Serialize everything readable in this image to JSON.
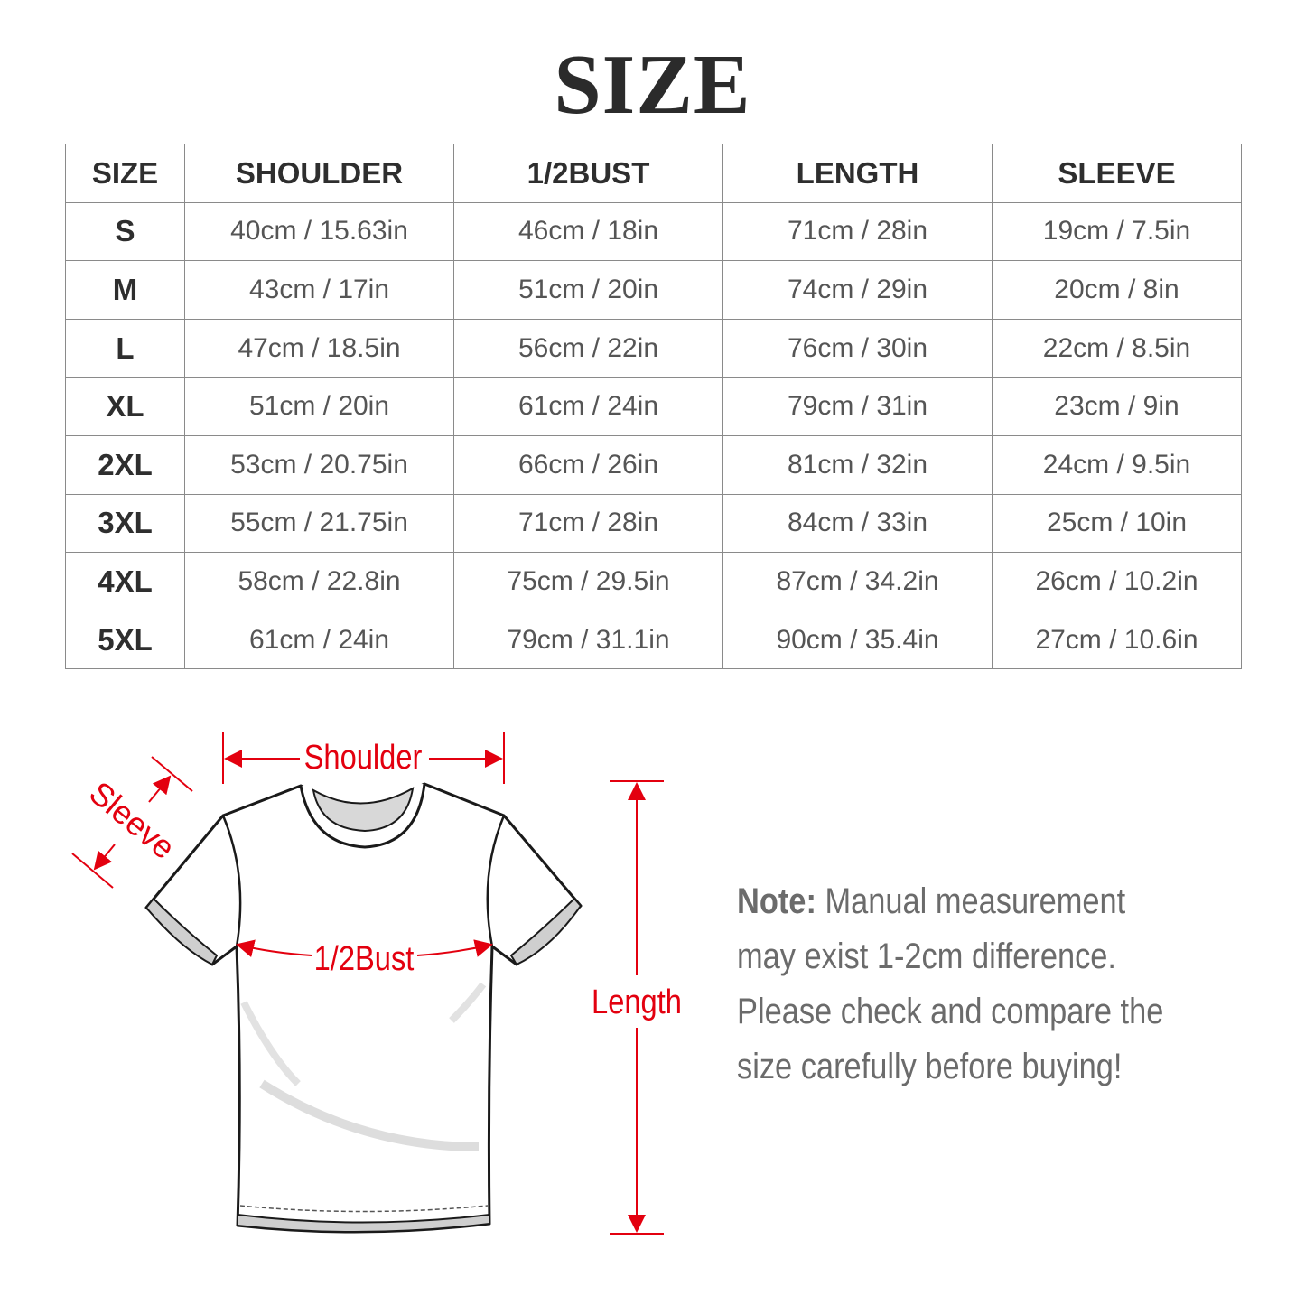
{
  "title": "SIZE",
  "table": {
    "headers": [
      "SIZE",
      "SHOULDER",
      "1/2BUST",
      "LENGTH",
      "SLEEVE"
    ],
    "rows": [
      [
        "S",
        "40cm / 15.63in",
        "46cm / 18in",
        "71cm / 28in",
        "19cm / 7.5in"
      ],
      [
        "M",
        "43cm / 17in",
        "51cm / 20in",
        "74cm / 29in",
        "20cm / 8in"
      ],
      [
        "L",
        "47cm / 18.5in",
        "56cm / 22in",
        "76cm / 30in",
        "22cm / 8.5in"
      ],
      [
        "XL",
        "51cm / 20in",
        "61cm / 24in",
        "79cm / 31in",
        "23cm / 9in"
      ],
      [
        "2XL",
        "53cm / 20.75in",
        "66cm / 26in",
        "81cm / 32in",
        "24cm / 9.5in"
      ],
      [
        "3XL",
        "55cm / 21.75in",
        "71cm / 28in",
        "84cm / 33in",
        "25cm / 10in"
      ],
      [
        "4XL",
        "58cm / 22.8in",
        "75cm / 29.5in",
        "87cm / 34.2in",
        "26cm / 10.2in"
      ],
      [
        "5XL",
        "61cm / 24in",
        "79cm / 31.1in",
        "90cm / 35.4in",
        "27cm / 10.6in"
      ]
    ]
  },
  "diagram": {
    "labels": {
      "shoulder": "Shoulder",
      "sleeve": "Sleeve",
      "bust": "1/2Bust",
      "length": "Length"
    },
    "accent_color": "#e3000f"
  },
  "note": {
    "label": "Note:",
    "text": "Manual measurement may exist 1-2cm difference. Please check and compare the size carefully before buying!"
  }
}
